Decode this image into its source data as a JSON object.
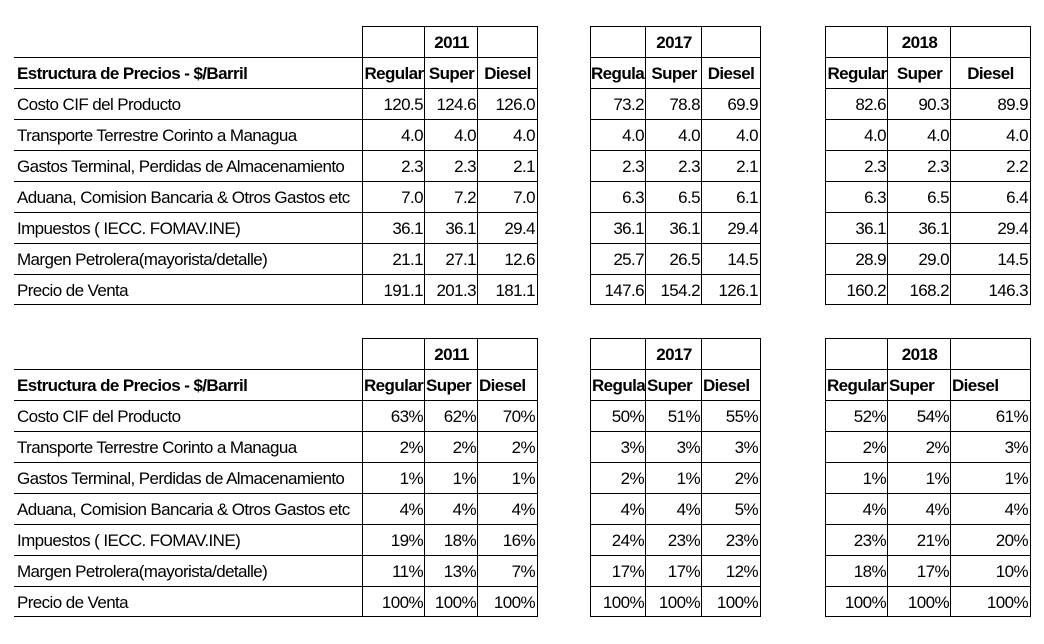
{
  "header_label": "Estructura de Precios  - $/Barril",
  "years": [
    "2011",
    "2017",
    "2018"
  ],
  "col_headers": [
    "Regular",
    "Super",
    "Diesel"
  ],
  "row_labels": [
    "Costo CIF del Producto",
    "Transporte Terrestre Corinto a Managua",
    " Gastos Terminal, Perdidas de Almacenamiento",
    " Aduana, Comision Bancaria & Otros Gastos etc",
    "Impuestos ( IECC. FOMAV.INE)",
    "Margen Petrolera(mayorista/detalle)",
    "Precio de Venta"
  ],
  "values_table": {
    "2011": [
      [
        "120.5",
        "124.6",
        "126.0"
      ],
      [
        "4.0",
        "4.0",
        "4.0"
      ],
      [
        "2.3",
        "2.3",
        "2.1"
      ],
      [
        "7.0",
        "7.2",
        "7.0"
      ],
      [
        "36.1",
        "36.1",
        "29.4"
      ],
      [
        "21.1",
        "27.1",
        "12.6"
      ],
      [
        "191.1",
        "201.3",
        "181.1"
      ]
    ],
    "2017": [
      [
        "73.2",
        "78.8",
        "69.9"
      ],
      [
        "4.0",
        "4.0",
        "4.0"
      ],
      [
        "2.3",
        "2.3",
        "2.1"
      ],
      [
        "6.3",
        "6.5",
        "6.1"
      ],
      [
        "36.1",
        "36.1",
        "29.4"
      ],
      [
        "25.7",
        "26.5",
        "14.5"
      ],
      [
        "147.6",
        "154.2",
        "126.1"
      ]
    ],
    "2018": [
      [
        "82.6",
        "90.3",
        "89.9"
      ],
      [
        "4.0",
        "4.0",
        "4.0"
      ],
      [
        "2.3",
        "2.3",
        "2.2"
      ],
      [
        "6.3",
        "6.5",
        "6.4"
      ],
      [
        "36.1",
        "36.1",
        "29.4"
      ],
      [
        "28.9",
        "29.0",
        "14.5"
      ],
      [
        "160.2",
        "168.2",
        "146.3"
      ]
    ]
  },
  "percent_table": {
    "2011": [
      [
        "63%",
        "62%",
        "70%"
      ],
      [
        "2%",
        "2%",
        "2%"
      ],
      [
        "1%",
        "1%",
        "1%"
      ],
      [
        "4%",
        "4%",
        "4%"
      ],
      [
        "19%",
        "18%",
        "16%"
      ],
      [
        "11%",
        "13%",
        "7%"
      ],
      [
        "100%",
        "100%",
        "100%"
      ]
    ],
    "2017": [
      [
        "50%",
        "51%",
        "55%"
      ],
      [
        "3%",
        "3%",
        "3%"
      ],
      [
        "2%",
        "1%",
        "2%"
      ],
      [
        "4%",
        "4%",
        "5%"
      ],
      [
        "24%",
        "23%",
        "23%"
      ],
      [
        "17%",
        "17%",
        "12%"
      ],
      [
        "100%",
        "100%",
        "100%"
      ]
    ],
    "2018": [
      [
        "52%",
        "54%",
        "61%"
      ],
      [
        "2%",
        "2%",
        "3%"
      ],
      [
        "1%",
        "1%",
        "1%"
      ],
      [
        "4%",
        "4%",
        "4%"
      ],
      [
        "23%",
        "21%",
        "20%"
      ],
      [
        "18%",
        "17%",
        "10%"
      ],
      [
        "100%",
        "100%",
        "100%"
      ]
    ]
  }
}
